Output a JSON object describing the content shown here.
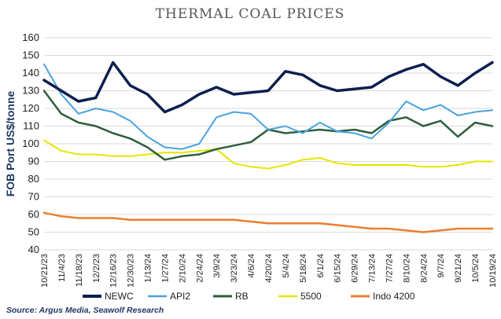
{
  "chart_data": {
    "type": "line",
    "title": "Thermal Coal Prices",
    "ylabel": "FOB Port US$/tonne",
    "xlabel": "",
    "ylim": [
      40,
      160
    ],
    "yticks": [
      40,
      50,
      60,
      70,
      80,
      90,
      100,
      110,
      120,
      130,
      140,
      150,
      160
    ],
    "grid": true,
    "legend_position": "bottom",
    "x": [
      "10/21/23",
      "11/4/23",
      "11/18/23",
      "12/2/23",
      "12/16/23",
      "12/30/23",
      "1/13/24",
      "1/27/24",
      "2/10/24",
      "2/24/24",
      "3/9/24",
      "3/23/24",
      "4/6/24",
      "4/20/24",
      "5/4/24",
      "5/18/24",
      "6/1/24",
      "6/15/24",
      "6/29/24",
      "7/13/24",
      "7/27/24",
      "8/10/24",
      "8/24/24",
      "9/7/24",
      "9/21/24",
      "10/5/24",
      "10/19/24"
    ],
    "series": [
      {
        "name": "NEWC",
        "color": "#0d1f4f",
        "width": 3.5,
        "values": [
          136,
          130,
          124,
          126,
          146,
          133,
          128,
          118,
          122,
          128,
          132,
          128,
          129,
          130,
          141,
          139,
          133,
          130,
          131,
          132,
          138,
          142,
          145,
          138,
          133,
          140,
          146
        ]
      },
      {
        "name": "API2",
        "color": "#4aa3df",
        "width": 2,
        "values": [
          145,
          128,
          117,
          120,
          118,
          113,
          104,
          98,
          97,
          100,
          115,
          118,
          117,
          108,
          110,
          106,
          112,
          107,
          106,
          103,
          112,
          124,
          119,
          122,
          116,
          118,
          119
        ]
      },
      {
        "name": "RB",
        "color": "#2e5e3e",
        "width": 2.5,
        "values": [
          130,
          117,
          112,
          110,
          106,
          103,
          98,
          91,
          93,
          94,
          97,
          99,
          101,
          108,
          106,
          107,
          108,
          107,
          108,
          106,
          113,
          115,
          110,
          113,
          104,
          112,
          110
        ]
      },
      {
        "name": "5500",
        "color": "#e6e600",
        "width": 2,
        "values": [
          102,
          96,
          94,
          94,
          93,
          93,
          94,
          95,
          95,
          96,
          97,
          89,
          87,
          86,
          88,
          91,
          92,
          89,
          88,
          88,
          88,
          88,
          87,
          87,
          88,
          90,
          90
        ]
      },
      {
        "name": "Indo 4200",
        "color": "#ed7d31",
        "width": 2.5,
        "values": [
          61,
          59,
          58,
          58,
          58,
          57,
          57,
          57,
          57,
          57,
          57,
          57,
          56,
          55,
          55,
          55,
          55,
          54,
          53,
          52,
          52,
          51,
          50,
          51,
          52,
          52,
          52
        ]
      }
    ]
  },
  "source": "Source: Argus Media, Seawolf Research"
}
